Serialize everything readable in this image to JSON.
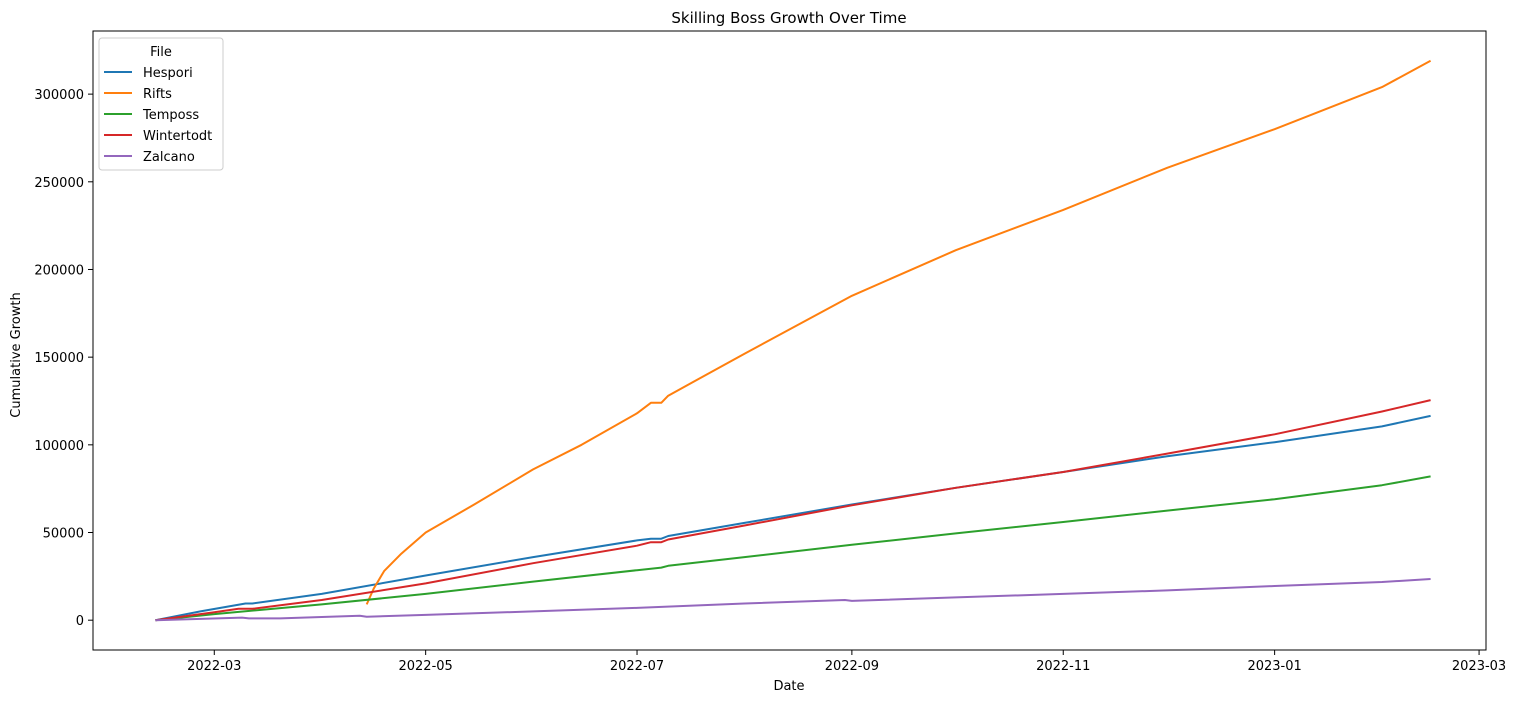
{
  "chart_data": {
    "type": "line",
    "title": "Skilling Boss Growth Over Time",
    "xlabel": "Date",
    "ylabel": "Cumulative Growth",
    "x_tick_labels": [
      {
        "date": "2022-03-01",
        "label": "2022-03"
      },
      {
        "date": "2022-05-01",
        "label": "2022-05"
      },
      {
        "date": "2022-07-01",
        "label": "2022-07"
      },
      {
        "date": "2022-09-01",
        "label": "2022-09"
      },
      {
        "date": "2022-11-01",
        "label": "2022-11"
      },
      {
        "date": "2023-01-01",
        "label": "2023-01"
      },
      {
        "date": "2023-03-01",
        "label": "2023-03"
      }
    ],
    "y_ticks": [
      0,
      50000,
      100000,
      150000,
      200000,
      250000,
      300000
    ],
    "xlim": [
      "2022-01-25",
      "2023-03-03"
    ],
    "ylim": [
      -17000,
      336000
    ],
    "grid": false,
    "legend": {
      "title": "File",
      "placement": "top-left"
    },
    "series": [
      {
        "name": "Hespori",
        "color": "#1f77b4",
        "points": [
          [
            "2022-02-12",
            0
          ],
          [
            "2022-02-25",
            5000
          ],
          [
            "2022-03-10",
            9500
          ],
          [
            "2022-03-12",
            9500
          ],
          [
            "2022-04-01",
            15000
          ],
          [
            "2022-05-01",
            25500
          ],
          [
            "2022-06-01",
            36000
          ],
          [
            "2022-07-01",
            45500
          ],
          [
            "2022-07-05",
            46500
          ],
          [
            "2022-07-08",
            46500
          ],
          [
            "2022-07-10",
            48000
          ],
          [
            "2022-08-01",
            55500
          ],
          [
            "2022-09-01",
            66000
          ],
          [
            "2022-10-01",
            75500
          ],
          [
            "2022-11-01",
            84500
          ],
          [
            "2022-12-01",
            93500
          ],
          [
            "2023-01-01",
            101500
          ],
          [
            "2023-02-01",
            110500
          ],
          [
            "2023-02-15",
            116500
          ]
        ]
      },
      {
        "name": "Rifts",
        "color": "#ff7f0e",
        "points": [
          [
            "2022-04-14",
            9000
          ],
          [
            "2022-04-16",
            18000
          ],
          [
            "2022-04-19",
            28000
          ],
          [
            "2022-04-24",
            38000
          ],
          [
            "2022-05-01",
            50000
          ],
          [
            "2022-05-15",
            66000
          ],
          [
            "2022-06-01",
            86000
          ],
          [
            "2022-06-15",
            100000
          ],
          [
            "2022-07-01",
            118000
          ],
          [
            "2022-07-05",
            124000
          ],
          [
            "2022-07-08",
            124000
          ],
          [
            "2022-07-10",
            128000
          ],
          [
            "2022-08-01",
            152000
          ],
          [
            "2022-09-01",
            185000
          ],
          [
            "2022-10-01",
            211000
          ],
          [
            "2022-11-01",
            234000
          ],
          [
            "2022-12-01",
            258000
          ],
          [
            "2023-01-01",
            280000
          ],
          [
            "2023-02-01",
            304000
          ],
          [
            "2023-02-15",
            319000
          ]
        ]
      },
      {
        "name": "Temposs",
        "name_display": "Temposs",
        "color": "#2ca02c",
        "points": [
          [
            "2022-02-12",
            0
          ],
          [
            "2022-03-01",
            3500
          ],
          [
            "2022-04-01",
            9000
          ],
          [
            "2022-05-01",
            15000
          ],
          [
            "2022-06-01",
            22000
          ],
          [
            "2022-07-01",
            28500
          ],
          [
            "2022-07-08",
            30000
          ],
          [
            "2022-07-10",
            31000
          ],
          [
            "2022-08-01",
            36000
          ],
          [
            "2022-09-01",
            43000
          ],
          [
            "2022-10-01",
            49500
          ],
          [
            "2022-11-01",
            56000
          ],
          [
            "2022-12-01",
            62500
          ],
          [
            "2023-01-01",
            69000
          ],
          [
            "2023-02-01",
            77000
          ],
          [
            "2023-02-15",
            82000
          ]
        ]
      },
      {
        "name": "Wintertodt",
        "color": "#d62728",
        "points": [
          [
            "2022-02-12",
            0
          ],
          [
            "2022-03-01",
            4500
          ],
          [
            "2022-03-08",
            6500
          ],
          [
            "2022-03-12",
            6500
          ],
          [
            "2022-04-01",
            11500
          ],
          [
            "2022-05-01",
            21000
          ],
          [
            "2022-06-01",
            32500
          ],
          [
            "2022-07-01",
            42500
          ],
          [
            "2022-07-05",
            44500
          ],
          [
            "2022-07-08",
            44500
          ],
          [
            "2022-07-10",
            46000
          ],
          [
            "2022-08-01",
            54000
          ],
          [
            "2022-09-01",
            65500
          ],
          [
            "2022-10-01",
            75500
          ],
          [
            "2022-11-01",
            84500
          ],
          [
            "2022-12-01",
            95000
          ],
          [
            "2023-01-01",
            106000
          ],
          [
            "2023-02-01",
            119000
          ],
          [
            "2023-02-15",
            125500
          ]
        ]
      },
      {
        "name": "Zalcano",
        "color": "#9467bd",
        "points": [
          [
            "2022-02-12",
            0
          ],
          [
            "2022-03-09",
            1500
          ],
          [
            "2022-03-11",
            1000
          ],
          [
            "2022-03-20",
            1000
          ],
          [
            "2022-04-12",
            2500
          ],
          [
            "2022-04-14",
            2000
          ],
          [
            "2022-05-01",
            3000
          ],
          [
            "2022-06-01",
            5000
          ],
          [
            "2022-07-01",
            7000
          ],
          [
            "2022-08-01",
            9500
          ],
          [
            "2022-08-30",
            11500
          ],
          [
            "2022-09-01",
            11000
          ],
          [
            "2022-10-01",
            13000
          ],
          [
            "2022-11-01",
            15000
          ],
          [
            "2022-12-01",
            17000
          ],
          [
            "2023-01-01",
            19500
          ],
          [
            "2023-02-01",
            21800
          ],
          [
            "2023-02-15",
            23500
          ]
        ]
      }
    ]
  }
}
